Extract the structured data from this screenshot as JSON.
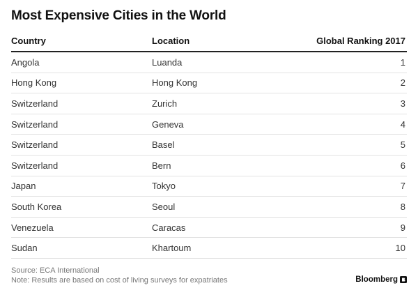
{
  "chart_data": {
    "type": "table",
    "title": "Most Expensive Cities in the World",
    "columns": [
      "Country",
      "Location",
      "Global Ranking 2017"
    ],
    "rows": [
      [
        "Angola",
        "Luanda",
        1
      ],
      [
        "Hong Kong",
        "Hong Kong",
        2
      ],
      [
        "Switzerland",
        "Zurich",
        3
      ],
      [
        "Switzerland",
        "Geneva",
        4
      ],
      [
        "Switzerland",
        "Basel",
        5
      ],
      [
        "Switzerland",
        "Bern",
        6
      ],
      [
        "Japan",
        "Tokyo",
        7
      ],
      [
        "South Korea",
        "Seoul",
        8
      ],
      [
        "Venezuela",
        "Caracas",
        9
      ],
      [
        "Sudan",
        "Khartoum",
        10
      ]
    ],
    "source": "Source: ECA International",
    "note": "Note: Results are based on cost of living surveys for expatriates"
  },
  "brand": {
    "name": "Bloomberg",
    "icon": "bloomberg-logo-icon"
  },
  "colors": {
    "text": "#222222",
    "muted": "#777777",
    "rule": "#222222",
    "row_divider": "#e2e2e2"
  }
}
